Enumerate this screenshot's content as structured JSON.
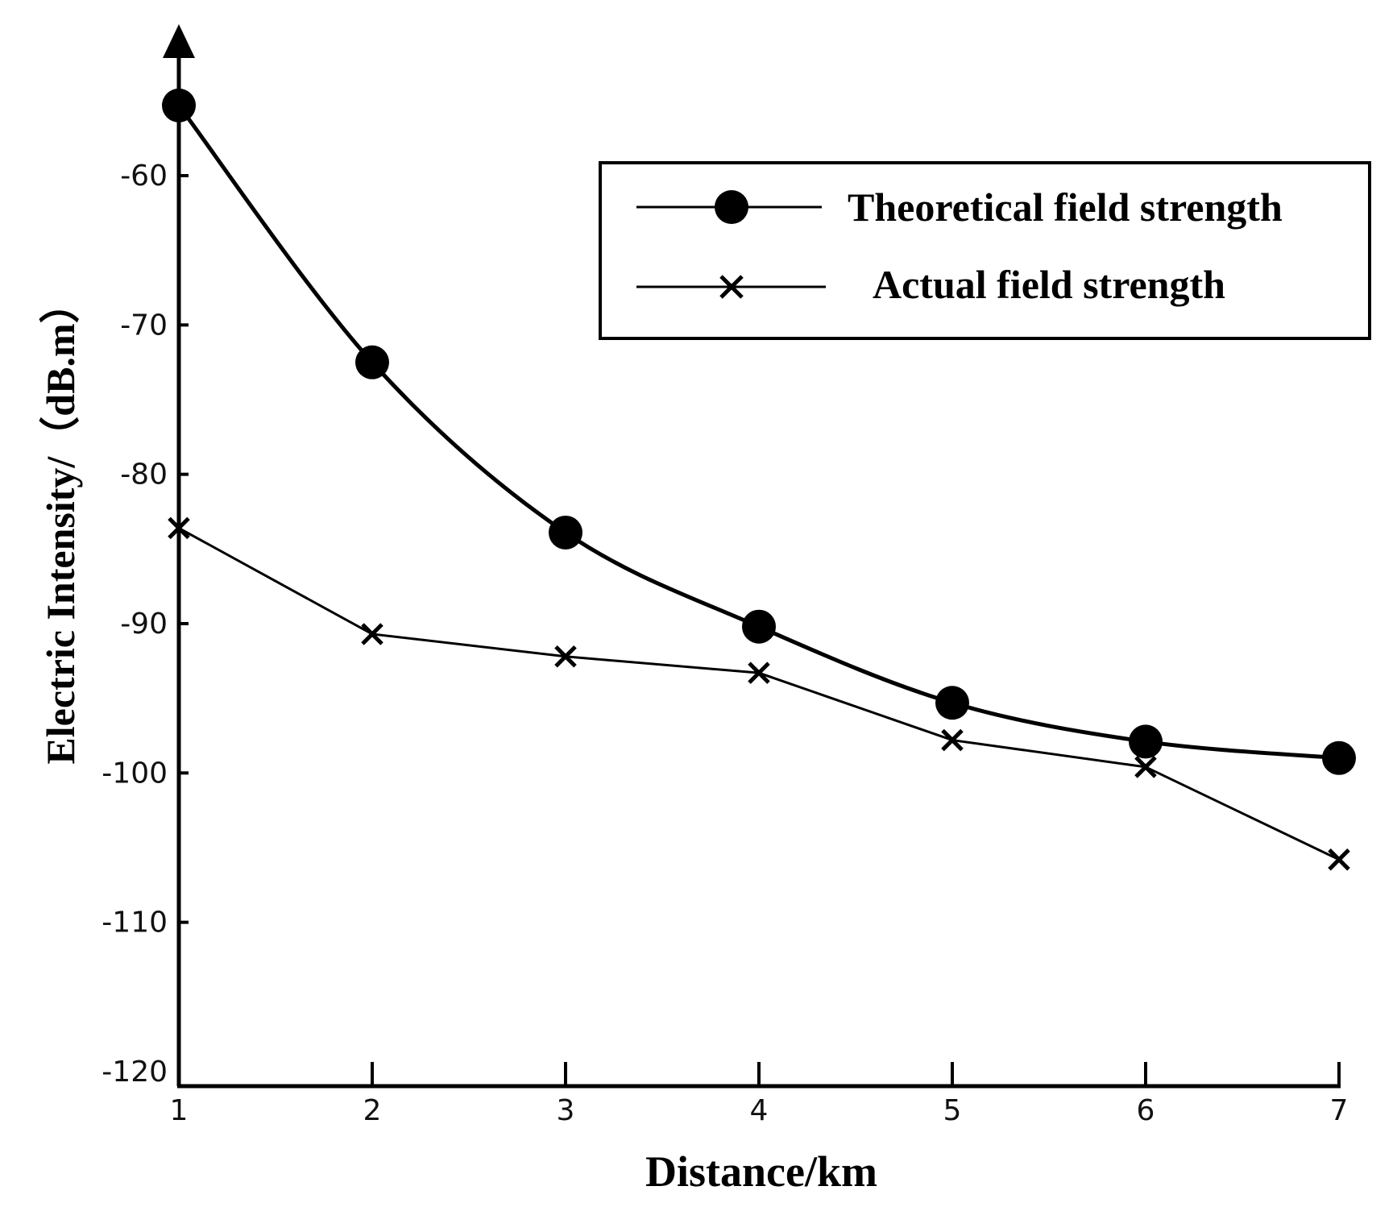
{
  "chart_data": {
    "type": "line",
    "xlabel": "Distance/km",
    "ylabel": "Electric Intensity/（dB.m）",
    "x": [
      1,
      2,
      3,
      4,
      5,
      6,
      7
    ],
    "xlim": [
      1,
      7
    ],
    "ylim": [
      -120,
      -53
    ],
    "yticks": [
      -60,
      -70,
      -80,
      -90,
      -100,
      -110,
      -120
    ],
    "xticks": [
      1,
      2,
      3,
      4,
      5,
      6,
      7
    ],
    "grid": false,
    "legend_position": "top-right",
    "series": [
      {
        "name": "Theoretical field strength",
        "marker": "circle",
        "smooth": true,
        "values": [
          -55.3,
          -72.5,
          -83.9,
          -90.2,
          -95.3,
          -97.9,
          -99.0
        ]
      },
      {
        "name": "Actual field strength",
        "marker": "x",
        "smooth": false,
        "values": [
          -83.6,
          -90.7,
          -92.2,
          -93.3,
          -97.8,
          -99.6,
          -105.8
        ]
      }
    ]
  }
}
